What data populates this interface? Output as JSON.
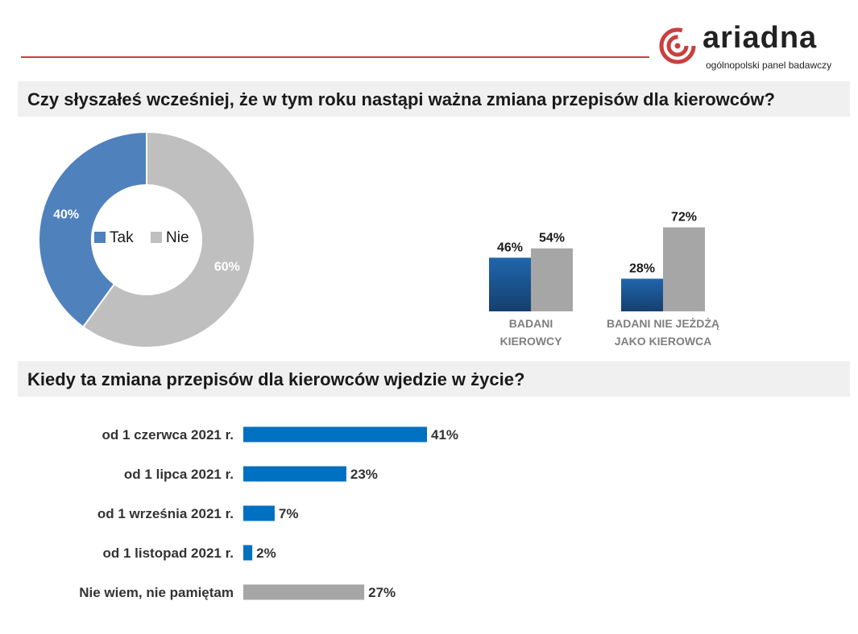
{
  "logo": {
    "name": "ariadna",
    "subtitle": "ogólnopolski panel badawczy",
    "icon": "ariadna-spiral-logo",
    "color": "#c8413f"
  },
  "questions": {
    "q1": "Czy słyszałeś wcześniej, że w tym roku nastąpi ważna zmiana przepisów dla kierowców?",
    "q2": "Kiedy ta zmiana przepisów dla kierowców wjedzie w życie?"
  },
  "chart_data": [
    {
      "type": "pie",
      "donut": true,
      "labels": [
        "Tak",
        "Nie"
      ],
      "values": [
        40,
        60
      ],
      "value_labels": [
        "40%",
        "60%"
      ],
      "colors": [
        "#4f81bd",
        "#bfbfbf"
      ],
      "legend": "center"
    },
    {
      "type": "bar",
      "categories": [
        [
          "BADANI",
          "KIEROWCY"
        ],
        [
          "BADANI NIE JEŻDŻĄ",
          "JAKO KIEROWCA"
        ]
      ],
      "series": [
        {
          "values": [
            46,
            28
          ],
          "labels": [
            "46%",
            "28%"
          ],
          "color": "#1f5a96"
        },
        {
          "values": [
            54,
            72
          ],
          "labels": [
            "54%",
            "72%"
          ],
          "color": "#a6a6a6"
        }
      ],
      "ylim": [
        0,
        100
      ],
      "grid": false
    },
    {
      "type": "bar",
      "orientation": "horizontal",
      "categories": [
        "od 1 czerwca 2021 r.",
        "od 1 lipca 2021 r.",
        "od 1 września 2021 r.",
        "od 1 listopad 2021 r.",
        "Nie wiem, nie pamiętam"
      ],
      "values": [
        41,
        23,
        7,
        2,
        27
      ],
      "value_labels": [
        "41%",
        "23%",
        "7%",
        "2%",
        "27%"
      ],
      "colors": [
        "#0070c0",
        "#0070c0",
        "#0070c0",
        "#0070c0",
        "#a6a6a6"
      ],
      "grid": false
    }
  ]
}
